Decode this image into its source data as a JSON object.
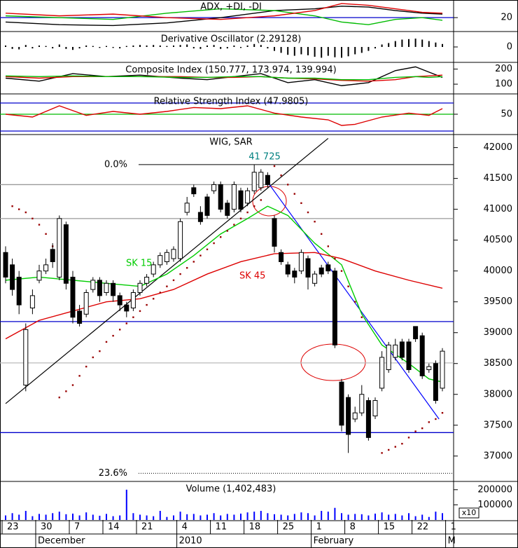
{
  "chart_data": [
    {
      "type": "line",
      "title": "ADX, +DI, -DI",
      "ylim": [
        5,
        40
      ],
      "yticks": [
        20
      ],
      "hlines": [
        {
          "value": 20,
          "color": "#0000cc"
        }
      ],
      "series": [
        {
          "color": "#000000",
          "x": [
            0,
            8,
            16,
            24,
            32,
            40,
            46,
            50,
            54,
            58,
            62,
            65
          ],
          "values": [
            15,
            12,
            11,
            14,
            20,
            28,
            30,
            33,
            32,
            28,
            25,
            24
          ]
        },
        {
          "color": "#00bb00",
          "x": [
            0,
            8,
            16,
            24,
            32,
            40,
            46,
            50,
            54,
            58,
            62,
            65
          ],
          "values": [
            22,
            20,
            18,
            25,
            30,
            28,
            22,
            15,
            12,
            18,
            20,
            17
          ]
        },
        {
          "color": "#dd0000",
          "x": [
            0,
            8,
            16,
            24,
            32,
            40,
            46,
            50,
            54,
            58,
            62,
            65
          ],
          "values": [
            25,
            22,
            24,
            20,
            18,
            22,
            28,
            36,
            34,
            30,
            26,
            25
          ]
        }
      ]
    },
    {
      "type": "bar",
      "title": "Derivative Oscillator (2.29128)",
      "ylim": [
        -3,
        3
      ],
      "yticks": [
        0
      ],
      "color": "#000000",
      "values": [
        0.3,
        -0.4,
        -0.5,
        0.4,
        -0.3,
        0.3,
        0.2,
        -0.3,
        0.5,
        -0.4,
        -0.6,
        -0.3,
        0.3,
        0.2,
        -0.2,
        0.2,
        -0.2,
        -0.3,
        0.2,
        0.3,
        0.4,
        0.3,
        0.4,
        0.3,
        0.2,
        0.3,
        0.4,
        0.5,
        -0.3,
        -0.4,
        0.3,
        0.4,
        -0.4,
        -0.3,
        0.3,
        -0.2,
        0.3,
        0.6,
        0.4,
        -0.3,
        -0.8,
        -1.2,
        -1.6,
        -1.8,
        -1.5,
        -1.7,
        -2.0,
        -2.2,
        -1.8,
        -2.1,
        -2.2,
        -1.9,
        -1.5,
        -1.2,
        -0.8,
        -0.3,
        0.5,
        0.8,
        1.2,
        1.5,
        1.6,
        1.7,
        1.5,
        1.2,
        0.9,
        0.6
      ]
    },
    {
      "type": "line",
      "title": "Composite Index (150.777, 173.974, 139.994)",
      "ylim": [
        40,
        240
      ],
      "yticks": [
        100,
        200
      ],
      "series": [
        {
          "color": "#000000",
          "x": [
            0,
            5,
            10,
            15,
            20,
            26,
            30,
            34,
            38,
            42,
            46,
            50,
            54,
            58,
            61,
            63,
            65
          ],
          "values": [
            140,
            120,
            170,
            150,
            160,
            140,
            130,
            150,
            170,
            110,
            130,
            90,
            110,
            190,
            215,
            180,
            145
          ]
        },
        {
          "color": "#dd0000",
          "x": [
            0,
            5,
            10,
            15,
            20,
            26,
            30,
            34,
            38,
            42,
            46,
            50,
            54,
            58,
            61,
            63,
            65
          ],
          "values": [
            150,
            140,
            150,
            150,
            150,
            150,
            145,
            145,
            150,
            140,
            135,
            125,
            120,
            130,
            150,
            155,
            160
          ]
        },
        {
          "color": "#00bb00",
          "x": [
            0,
            5,
            10,
            15,
            20,
            26,
            30,
            34,
            38,
            42,
            46,
            50,
            54,
            58,
            61,
            63,
            65
          ],
          "values": [
            155,
            150,
            155,
            150,
            150,
            145,
            145,
            150,
            150,
            140,
            140,
            130,
            130,
            145,
            150,
            145,
            150
          ]
        }
      ]
    },
    {
      "type": "line",
      "title": "Relative Strength Index (47.9805)",
      "ylim": [
        15,
        85
      ],
      "yticks": [
        50
      ],
      "hlines": [
        {
          "value": 70,
          "color": "#0000cc"
        },
        {
          "value": 50,
          "color": "#00bb00"
        },
        {
          "value": 20,
          "color": "#0000cc"
        }
      ],
      "series": [
        {
          "color": "#dd0000",
          "x": [
            0,
            4,
            8,
            12,
            16,
            20,
            24,
            28,
            32,
            36,
            40,
            44,
            48,
            50,
            52,
            56,
            60,
            63,
            65
          ],
          "values": [
            50,
            45,
            65,
            48,
            55,
            50,
            55,
            62,
            60,
            65,
            52,
            45,
            40,
            30,
            32,
            45,
            52,
            48,
            60
          ]
        }
      ]
    },
    {
      "type": "candlestick",
      "title": "WIG, SAR",
      "ylim": [
        36600,
        42200
      ],
      "yticks": [
        37000,
        37500,
        38000,
        38500,
        39000,
        39500,
        40000,
        40500,
        41000,
        41500,
        42000
      ],
      "xticks": [
        {
          "value": 0,
          "label": "23"
        },
        {
          "value": 5,
          "label": "30"
        },
        {
          "value": 10,
          "label": "7"
        },
        {
          "value": 15,
          "label": "14"
        },
        {
          "value": 20,
          "label": "21"
        },
        {
          "value": 26,
          "label": "4"
        },
        {
          "value": 31,
          "label": "11"
        },
        {
          "value": 36,
          "label": "18"
        },
        {
          "value": 41,
          "label": "25"
        },
        {
          "value": 46,
          "label": "1"
        },
        {
          "value": 51,
          "label": "8"
        },
        {
          "value": 56,
          "label": "15"
        },
        {
          "value": 61,
          "label": "22"
        },
        {
          "value": 66,
          "label": "1"
        }
      ],
      "months": [
        {
          "value": 5,
          "label": "December"
        },
        {
          "value": 26,
          "label": "2010"
        },
        {
          "value": 46,
          "label": "February"
        },
        {
          "value": 66,
          "label": "M"
        }
      ],
      "open": [
        40300,
        40100,
        39900,
        38150,
        39400,
        39850,
        40000,
        40350,
        39900,
        40750,
        39900,
        39350,
        39300,
        39700,
        39850,
        39650,
        39800,
        39600,
        39450,
        39400,
        39650,
        39800,
        39950,
        40100,
        40150,
        40200,
        40200,
        40950,
        41350,
        40950,
        41200,
        41300,
        41400,
        41100,
        41000,
        41300,
        41100,
        41300,
        41350,
        41550,
        40850,
        40300,
        40100,
        40000,
        40000,
        40200,
        39800,
        40050,
        40100,
        40000,
        38200,
        37950,
        37600,
        37700,
        37900,
        37650,
        38100,
        38400,
        38600,
        38850,
        38850,
        39100,
        38950,
        38400,
        38500,
        38100
      ],
      "high": [
        40400,
        40200,
        40000,
        39150,
        39700,
        40100,
        40200,
        40450,
        40900,
        40800,
        40000,
        39450,
        39700,
        39900,
        39900,
        39850,
        39850,
        39650,
        39500,
        39700,
        39850,
        39950,
        40150,
        40300,
        40350,
        40400,
        40850,
        41200,
        41400,
        41050,
        41250,
        41450,
        41450,
        41150,
        41450,
        41350,
        41350,
        41725,
        41650,
        41600,
        40900,
        40350,
        40150,
        40050,
        40350,
        40250,
        40000,
        40100,
        40150,
        40050,
        38250,
        38000,
        37800,
        38150,
        37950,
        37950,
        38700,
        38850,
        38900,
        38900,
        38900,
        39100,
        39000,
        38500,
        38550,
        38750
      ],
      "low": [
        39800,
        39600,
        39300,
        38050,
        39300,
        39800,
        39950,
        40050,
        39850,
        39700,
        39150,
        39100,
        39250,
        39650,
        39500,
        39600,
        39500,
        39350,
        39250,
        39350,
        39600,
        39750,
        39900,
        40050,
        40100,
        40150,
        40150,
        40900,
        41200,
        40750,
        40850,
        41250,
        40950,
        40850,
        40950,
        40950,
        41050,
        41250,
        41300,
        41350,
        40300,
        40100,
        39900,
        39800,
        39950,
        39700,
        39750,
        39900,
        39950,
        38750,
        37400,
        37050,
        37550,
        37650,
        37250,
        37600,
        38050,
        38350,
        38550,
        38550,
        38350,
        38850,
        38250,
        38350,
        37850,
        38050
      ],
      "close": [
        39900,
        39700,
        39450,
        39050,
        39600,
        40000,
        40100,
        40150,
        40850,
        39800,
        39250,
        39150,
        39650,
        39850,
        39600,
        39800,
        39600,
        39450,
        39350,
        39650,
        39800,
        39900,
        40100,
        40250,
        40300,
        40350,
        40800,
        41100,
        41250,
        40800,
        40900,
        41400,
        41000,
        40900,
        41400,
        41000,
        41300,
        41600,
        41600,
        41400,
        40400,
        40150,
        39950,
        39900,
        40300,
        39900,
        39950,
        39950,
        40000,
        38800,
        37500,
        37350,
        37700,
        38000,
        37300,
        37900,
        38600,
        38800,
        38800,
        38600,
        38400,
        38900,
        38300,
        38450,
        37900,
        38700
      ],
      "series": [
        {
          "name": "SK 15",
          "color": "#00cc00",
          "x": [
            0,
            5,
            10,
            15,
            20,
            24,
            28,
            32,
            36,
            39,
            42,
            46,
            50,
            53,
            56,
            60,
            63,
            65
          ],
          "values": [
            39850,
            39900,
            39850,
            39800,
            39750,
            39950,
            40250,
            40600,
            40850,
            41050,
            40900,
            40450,
            40100,
            39300,
            38800,
            38500,
            38250,
            38200
          ]
        },
        {
          "name": "SK 45",
          "color": "#dd0000",
          "x": [
            0,
            5,
            10,
            15,
            20,
            25,
            30,
            35,
            40,
            46,
            50,
            55,
            60,
            65
          ],
          "values": [
            38900,
            39200,
            39350,
            39500,
            39550,
            39700,
            39950,
            40150,
            40280,
            40300,
            40200,
            40000,
            39850,
            39720
          ]
        }
      ],
      "sar": {
        "color": "#990000",
        "x": [
          1,
          2,
          3,
          4,
          5,
          6,
          7,
          8,
          9,
          10,
          11,
          12,
          13,
          14,
          15,
          16,
          17,
          18,
          19,
          20,
          21,
          22,
          23,
          24,
          25,
          26,
          27,
          28,
          29,
          30,
          31,
          32,
          33,
          34,
          35,
          36,
          37,
          38,
          40,
          41,
          42,
          43,
          44,
          45,
          46,
          47,
          48,
          49,
          50,
          51,
          52,
          53,
          56,
          57,
          58,
          59,
          60,
          61,
          62,
          63,
          64,
          65
        ],
        "values": [
          41050,
          41000,
          40950,
          40850,
          40750,
          40600,
          40400,
          37950,
          38050,
          38150,
          38300,
          38450,
          38600,
          38700,
          38850,
          38950,
          39050,
          39150,
          39250,
          39350,
          39450,
          39550,
          39650,
          39750,
          39850,
          39950,
          40050,
          40150,
          40250,
          40350,
          40450,
          40550,
          40650,
          40750,
          40850,
          40950,
          41050,
          41150,
          41700,
          41550,
          41400,
          41250,
          41100,
          40950,
          40800,
          40600,
          40400,
          40200,
          40000,
          39750,
          39500,
          39250,
          37050,
          37100,
          37150,
          37200,
          37300,
          37400,
          37450,
          37550,
          37600,
          37700
        ]
      },
      "hlines": [
        {
          "value": 39180,
          "color": "#0000cc"
        },
        {
          "value": 37380,
          "color": "#0000cc"
        },
        {
          "value": 41400,
          "color": "#999999"
        },
        {
          "value": 40850,
          "color": "#999999"
        },
        {
          "value": 38510,
          "color": "#bbbbbb"
        }
      ],
      "trend_lines": [
        {
          "color": "#000000",
          "x": [
            0,
            48
          ],
          "values": [
            37850,
            42150
          ]
        },
        {
          "color": "#0000ff",
          "x": [
            38.8,
            64.5
          ],
          "values": [
            41470,
            37600
          ]
        }
      ],
      "levels": [
        {
          "label": "0.0%",
          "value": 41725
        },
        {
          "label": "23.6%",
          "value": 36720
        }
      ],
      "peak": {
        "value": 41725,
        "label": "41 725"
      }
    },
    {
      "type": "bar",
      "title": "Volume (1,402,483)",
      "ylim": [
        0,
        250000
      ],
      "yticks": [
        200000,
        100000
      ],
      "multiplier_label": "x10",
      "color": "#0000ff",
      "values": [
        30000,
        45000,
        35000,
        60000,
        25000,
        40000,
        35000,
        45000,
        55000,
        38000,
        42000,
        30000,
        50000,
        35000,
        28000,
        40000,
        25000,
        30000,
        200000,
        45000,
        35000,
        30000,
        25000,
        60000,
        20000,
        30000,
        55000,
        38000,
        40000,
        30000,
        35000,
        45000,
        30000,
        40000,
        35000,
        42000,
        50000,
        55000,
        60000,
        45000,
        38000,
        35000,
        30000,
        40000,
        50000,
        45000,
        30000,
        60000,
        55000,
        80000,
        45000,
        35000,
        40000,
        38000,
        30000,
        42000,
        50000,
        35000,
        40000,
        30000,
        45000,
        25000,
        35000,
        20000,
        55000,
        45000
      ]
    }
  ]
}
